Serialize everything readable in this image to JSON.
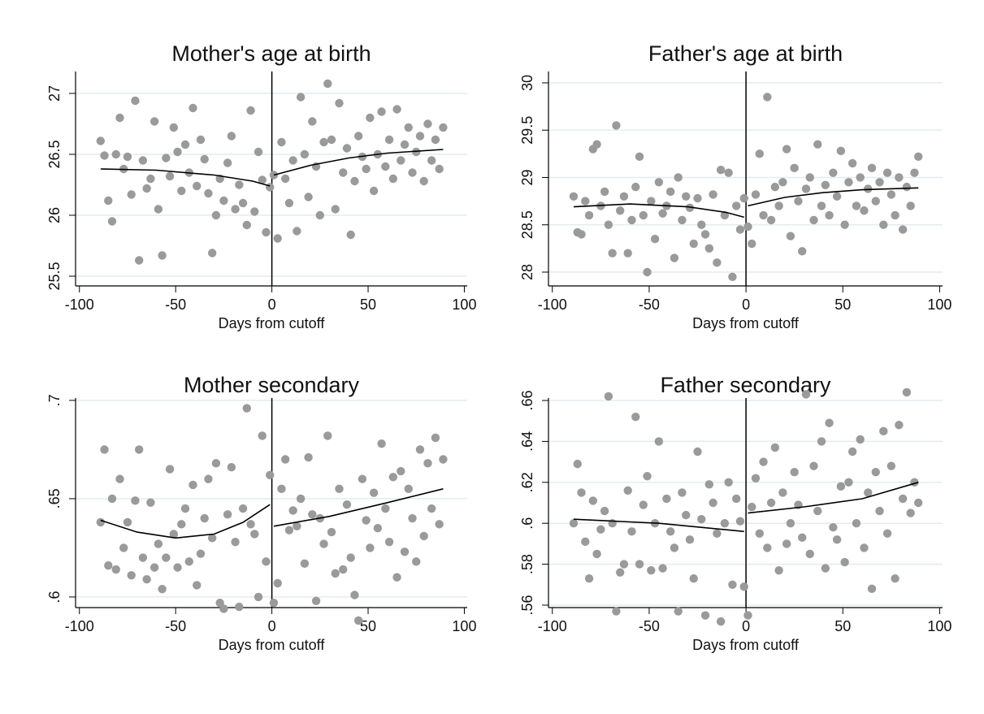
{
  "chart_data": [
    {
      "type": "scatter",
      "title": "Mother's age at birth",
      "x_label": "Days from cutoff",
      "color": "#9a9a9a",
      "line_color": "#000000",
      "cutoff": 0,
      "grid": true,
      "xlim": [
        -102,
        101.5
      ],
      "ylim": [
        25.42,
        27.18
      ],
      "xticks": [
        -100,
        -50,
        0,
        50,
        100
      ],
      "yticks": [
        25.5,
        26,
        26.5,
        27
      ],
      "x": [
        -89,
        -87,
        -85,
        -83,
        -81,
        -79,
        -77,
        -75,
        -73,
        -71,
        -69,
        -67,
        -65,
        -63,
        -61,
        -59,
        -57,
        -55,
        -53,
        -51,
        -49,
        -47,
        -45,
        -43,
        -41,
        -39,
        -37,
        -35,
        -33,
        -31,
        -29,
        -27,
        -25,
        -23,
        -21,
        -19,
        -17,
        -15,
        -13,
        -11,
        -9,
        -7,
        -5,
        -3,
        -1,
        1,
        3,
        5,
        7,
        9,
        11,
        13,
        15,
        17,
        19,
        21,
        23,
        25,
        27,
        29,
        31,
        33,
        35,
        37,
        39,
        41,
        43,
        45,
        47,
        49,
        51,
        53,
        55,
        57,
        59,
        61,
        63,
        65,
        67,
        69,
        71,
        73,
        75,
        77,
        79,
        81,
        83,
        85,
        87,
        89
      ],
      "values": [
        26.61,
        26.49,
        26.12,
        25.95,
        26.5,
        26.8,
        26.38,
        26.48,
        26.17,
        26.94,
        25.63,
        26.45,
        26.22,
        26.3,
        26.77,
        26.05,
        25.67,
        26.47,
        26.32,
        26.72,
        26.52,
        26.2,
        26.58,
        26.35,
        26.88,
        26.24,
        26.62,
        26.46,
        26.18,
        25.69,
        26.0,
        26.3,
        26.12,
        26.43,
        26.65,
        26.05,
        26.25,
        26.1,
        25.92,
        26.86,
        26.03,
        26.52,
        26.29,
        25.86,
        26.23,
        26.33,
        25.81,
        26.6,
        26.3,
        26.1,
        26.45,
        25.87,
        26.97,
        26.5,
        26.15,
        26.77,
        26.4,
        26.0,
        26.6,
        27.08,
        26.62,
        26.05,
        26.92,
        26.35,
        26.55,
        25.84,
        26.28,
        26.65,
        26.48,
        26.38,
        26.8,
        26.2,
        26.5,
        26.85,
        26.4,
        26.62,
        26.3,
        26.87,
        26.45,
        26.58,
        26.72,
        26.35,
        26.52,
        26.65,
        26.28,
        26.75,
        26.45,
        26.62,
        26.38,
        26.72
      ],
      "lines": [
        {
          "x": [
            -89,
            -60,
            -30,
            -10,
            -1
          ],
          "values": [
            26.38,
            26.37,
            26.33,
            26.28,
            26.24
          ]
        },
        {
          "x": [
            1,
            20,
            40,
            60,
            89
          ],
          "values": [
            26.33,
            26.41,
            26.47,
            26.51,
            26.54
          ]
        }
      ]
    },
    {
      "type": "scatter",
      "title": "Father's age at birth",
      "x_label": "Days from cutoff",
      "color": "#9a9a9a",
      "line_color": "#000000",
      "cutoff": 0,
      "grid": true,
      "xlim": [
        -102,
        101.5
      ],
      "ylim": [
        27.854,
        30.12
      ],
      "xticks": [
        -100,
        -50,
        0,
        50,
        100
      ],
      "yticks": [
        28,
        28.5,
        29,
        29.5,
        30
      ],
      "x": [
        -89,
        -87,
        -85,
        -83,
        -81,
        -79,
        -77,
        -75,
        -73,
        -71,
        -69,
        -67,
        -65,
        -63,
        -61,
        -59,
        -57,
        -55,
        -53,
        -51,
        -49,
        -47,
        -45,
        -43,
        -41,
        -39,
        -37,
        -35,
        -33,
        -31,
        -29,
        -27,
        -25,
        -23,
        -21,
        -19,
        -17,
        -15,
        -13,
        -11,
        -9,
        -7,
        -5,
        -3,
        -1,
        1,
        3,
        5,
        7,
        9,
        11,
        13,
        15,
        17,
        19,
        21,
        23,
        25,
        27,
        29,
        31,
        33,
        35,
        37,
        39,
        41,
        43,
        45,
        47,
        49,
        51,
        53,
        55,
        57,
        59,
        61,
        63,
        65,
        67,
        69,
        71,
        73,
        75,
        77,
        79,
        81,
        83,
        85,
        87,
        89
      ],
      "values": [
        28.8,
        28.42,
        28.4,
        28.75,
        28.6,
        29.3,
        29.35,
        28.7,
        28.85,
        28.5,
        28.2,
        29.55,
        28.65,
        28.8,
        28.2,
        28.55,
        28.9,
        29.22,
        28.6,
        28.0,
        28.75,
        28.35,
        28.95,
        28.62,
        28.7,
        28.85,
        28.15,
        29.0,
        28.55,
        28.8,
        28.68,
        28.3,
        28.78,
        28.5,
        28.4,
        28.25,
        28.82,
        28.1,
        29.08,
        28.6,
        29.05,
        27.95,
        28.7,
        28.45,
        28.78,
        28.48,
        28.3,
        28.82,
        29.25,
        28.6,
        29.85,
        28.55,
        28.9,
        28.7,
        28.95,
        29.3,
        28.38,
        29.1,
        28.75,
        28.22,
        28.88,
        29.0,
        28.55,
        29.35,
        28.7,
        28.92,
        28.6,
        29.05,
        28.8,
        29.28,
        28.5,
        28.95,
        29.15,
        28.7,
        29.0,
        28.65,
        28.88,
        29.1,
        28.75,
        28.95,
        28.5,
        29.05,
        28.82,
        28.6,
        29.0,
        28.45,
        28.9,
        28.7,
        29.05,
        29.22
      ],
      "lines": [
        {
          "x": [
            -89,
            -60,
            -30,
            -10,
            -1
          ],
          "values": [
            28.69,
            28.72,
            28.69,
            28.63,
            28.58
          ]
        },
        {
          "x": [
            1,
            20,
            40,
            60,
            89
          ],
          "values": [
            28.7,
            28.79,
            28.84,
            28.87,
            28.89
          ]
        }
      ]
    },
    {
      "type": "scatter",
      "title": "Mother secondary",
      "x_label": "Days from cutoff",
      "color": "#9a9a9a",
      "line_color": "#000000",
      "cutoff": 0,
      "grid": true,
      "xlim": [
        -102,
        101.5
      ],
      "ylim": [
        0.5946,
        0.7012
      ],
      "xticks": [
        -100,
        -50,
        0,
        50,
        100
      ],
      "yticks": [
        {
          "value": 0.6,
          "label": ".6"
        },
        {
          "value": 0.65,
          "label": ".65"
        },
        {
          "value": 0.7,
          "label": ".7"
        }
      ],
      "x": [
        -89,
        -87,
        -85,
        -83,
        -81,
        -79,
        -77,
        -75,
        -73,
        -71,
        -69,
        -67,
        -65,
        -63,
        -61,
        -59,
        -57,
        -55,
        -53,
        -51,
        -49,
        -47,
        -45,
        -43,
        -41,
        -39,
        -37,
        -35,
        -33,
        -31,
        -29,
        -27,
        -25,
        -23,
        -21,
        -19,
        -17,
        -15,
        -13,
        -11,
        -9,
        -7,
        -5,
        -3,
        -1,
        1,
        3,
        5,
        7,
        9,
        11,
        13,
        15,
        17,
        19,
        21,
        23,
        25,
        27,
        29,
        31,
        33,
        35,
        37,
        39,
        41,
        43,
        45,
        47,
        49,
        51,
        53,
        55,
        57,
        59,
        61,
        63,
        65,
        67,
        69,
        71,
        73,
        75,
        77,
        79,
        81,
        83,
        85,
        87,
        89
      ],
      "values": [
        0.638,
        0.675,
        0.616,
        0.65,
        0.614,
        0.66,
        0.625,
        0.638,
        0.611,
        0.649,
        0.675,
        0.62,
        0.609,
        0.648,
        0.615,
        0.627,
        0.604,
        0.62,
        0.665,
        0.632,
        0.615,
        0.637,
        0.645,
        0.618,
        0.657,
        0.606,
        0.622,
        0.64,
        0.66,
        0.63,
        0.668,
        0.597,
        0.594,
        0.642,
        0.666,
        0.628,
        0.595,
        0.645,
        0.696,
        0.637,
        0.632,
        0.6,
        0.682,
        0.618,
        0.662,
        0.597,
        0.607,
        0.655,
        0.67,
        0.634,
        0.644,
        0.636,
        0.65,
        0.617,
        0.671,
        0.642,
        0.598,
        0.64,
        0.627,
        0.682,
        0.633,
        0.612,
        0.655,
        0.614,
        0.647,
        0.62,
        0.601,
        0.588,
        0.66,
        0.639,
        0.625,
        0.653,
        0.635,
        0.678,
        0.645,
        0.628,
        0.661,
        0.61,
        0.664,
        0.623,
        0.655,
        0.64,
        0.618,
        0.675,
        0.631,
        0.668,
        0.645,
        0.681,
        0.637,
        0.67
      ],
      "lines": [
        {
          "x": [
            -89,
            -70,
            -50,
            -30,
            -15,
            -1
          ],
          "values": [
            0.639,
            0.633,
            0.63,
            0.632,
            0.638,
            0.647
          ]
        },
        {
          "x": [
            1,
            30,
            60,
            89
          ],
          "values": [
            0.636,
            0.641,
            0.648,
            0.655
          ]
        }
      ]
    },
    {
      "type": "scatter",
      "title": "Father secondary",
      "x_label": "Days from cutoff",
      "color": "#9a9a9a",
      "line_color": "#000000",
      "cutoff": 0,
      "grid": true,
      "xlim": [
        -102,
        101.5
      ],
      "ylim": [
        0.5588,
        0.6612
      ],
      "xticks": [
        -100,
        -50,
        0,
        50,
        100
      ],
      "yticks": [
        {
          "value": 0.56,
          "label": ".56"
        },
        {
          "value": 0.58,
          "label": ".58"
        },
        {
          "value": 0.6,
          "label": ".6"
        },
        {
          "value": 0.62,
          "label": ".62"
        },
        {
          "value": 0.64,
          "label": ".64"
        },
        {
          "value": 0.66,
          "label": ".66"
        }
      ],
      "x": [
        -89,
        -87,
        -85,
        -83,
        -81,
        -79,
        -77,
        -75,
        -73,
        -71,
        -69,
        -67,
        -65,
        -63,
        -61,
        -59,
        -57,
        -55,
        -53,
        -51,
        -49,
        -47,
        -45,
        -43,
        -41,
        -39,
        -37,
        -35,
        -33,
        -31,
        -29,
        -27,
        -25,
        -23,
        -21,
        -19,
        -17,
        -15,
        -13,
        -11,
        -9,
        -7,
        -5,
        -3,
        -1,
        1,
        3,
        5,
        7,
        9,
        11,
        13,
        15,
        17,
        19,
        21,
        23,
        25,
        27,
        29,
        31,
        33,
        35,
        37,
        39,
        41,
        43,
        45,
        47,
        49,
        51,
        53,
        55,
        57,
        59,
        61,
        63,
        65,
        67,
        69,
        71,
        73,
        75,
        77,
        79,
        81,
        83,
        85,
        87,
        89
      ],
      "values": [
        0.6,
        0.629,
        0.615,
        0.591,
        0.573,
        0.611,
        0.585,
        0.597,
        0.606,
        0.662,
        0.6,
        0.557,
        0.576,
        0.58,
        0.616,
        0.596,
        0.652,
        0.58,
        0.609,
        0.623,
        0.577,
        0.6,
        0.64,
        0.578,
        0.612,
        0.596,
        0.588,
        0.557,
        0.615,
        0.604,
        0.592,
        0.573,
        0.635,
        0.602,
        0.555,
        0.619,
        0.61,
        0.595,
        0.552,
        0.6,
        0.62,
        0.57,
        0.612,
        0.601,
        0.569,
        0.555,
        0.608,
        0.622,
        0.595,
        0.63,
        0.588,
        0.61,
        0.637,
        0.577,
        0.615,
        0.59,
        0.6,
        0.625,
        0.609,
        0.593,
        0.663,
        0.585,
        0.628,
        0.606,
        0.64,
        0.578,
        0.649,
        0.598,
        0.592,
        0.618,
        0.581,
        0.62,
        0.635,
        0.6,
        0.641,
        0.588,
        0.615,
        0.568,
        0.625,
        0.606,
        0.645,
        0.595,
        0.628,
        0.573,
        0.648,
        0.612,
        0.664,
        0.605,
        0.62,
        0.61
      ],
      "lines": [
        {
          "x": [
            -89,
            -45,
            -1
          ],
          "values": [
            0.602,
            0.6,
            0.596
          ]
        },
        {
          "x": [
            1,
            30,
            60,
            89
          ],
          "values": [
            0.605,
            0.608,
            0.612,
            0.62
          ]
        }
      ]
    }
  ]
}
